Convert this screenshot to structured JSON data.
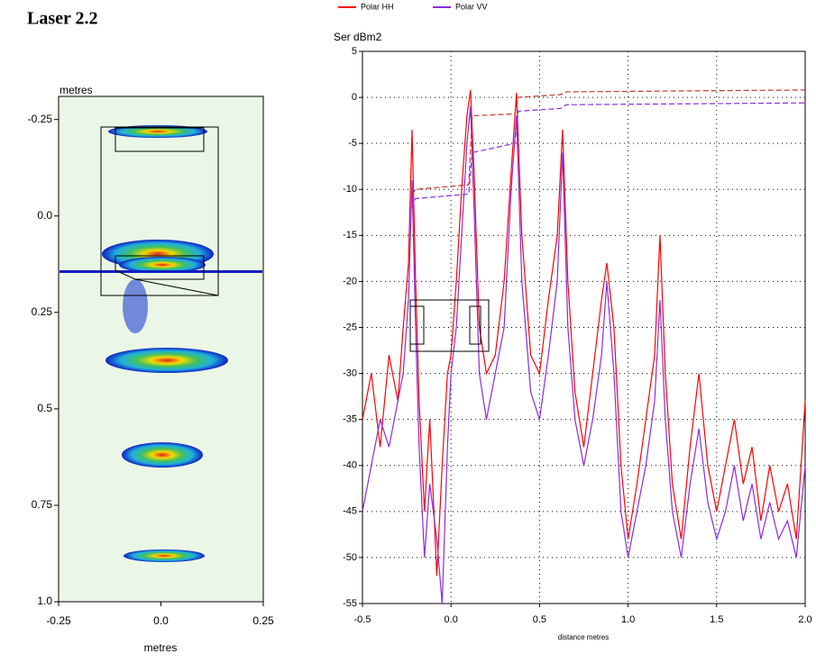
{
  "chart_data": [
    {
      "type": "heatmap",
      "title": "Laser 2.2",
      "ylabel": "metres",
      "xlabel": "metres",
      "xlim": [
        -0.25,
        0.25
      ],
      "xticks": [
        -0.25,
        {
          "value": 0,
          "label": "0.0"
        },
        0.25
      ],
      "ylim": [
        -0.31,
        1.0
      ],
      "yticks": [
        -0.25,
        {
          "value": 0,
          "label": "0.0"
        },
        0.25,
        0.5,
        0.75,
        {
          "value": 1,
          "label": "1.0"
        }
      ],
      "background": "#eaf7e6"
    },
    {
      "type": "line",
      "ylabel": "Ser dBm2",
      "xlabel": "distance metres",
      "xlim": [
        -0.5,
        2.0
      ],
      "xticks": [
        -0.5,
        {
          "value": 0,
          "label": "0.0"
        },
        0.5,
        {
          "value": 1,
          "label": "1.0"
        },
        1.5,
        {
          "value": 2,
          "label": "2.0"
        }
      ],
      "ylim": [
        -55,
        5
      ],
      "yticks": [
        -55,
        -50,
        -45,
        -40,
        -35,
        -30,
        -25,
        -20,
        -15,
        -10,
        -5,
        0,
        5
      ],
      "grid": true,
      "x": [
        -0.5,
        -0.45,
        -0.4,
        -0.35,
        -0.3,
        -0.27,
        -0.24,
        -0.22,
        -0.2,
        -0.18,
        -0.15,
        -0.12,
        -0.08,
        -0.05,
        -0.02,
        0.0,
        0.03,
        0.06,
        0.09,
        0.11,
        0.13,
        0.16,
        0.2,
        0.25,
        0.3,
        0.34,
        0.37,
        0.4,
        0.45,
        0.5,
        0.55,
        0.6,
        0.63,
        0.66,
        0.7,
        0.75,
        0.8,
        0.85,
        0.88,
        0.92,
        0.96,
        1.0,
        1.05,
        1.1,
        1.15,
        1.18,
        1.21,
        1.25,
        1.3,
        1.35,
        1.4,
        1.45,
        1.5,
        1.55,
        1.6,
        1.65,
        1.7,
        1.75,
        1.8,
        1.85,
        1.9,
        1.95,
        2.0
      ],
      "series": [
        {
          "name": "Polar HH",
          "color": "#ff0000",
          "values": [
            -35,
            -30,
            -38,
            -28,
            -33,
            -25,
            -18,
            -3.5,
            -20,
            -33,
            -45,
            -35,
            -52,
            -40,
            -30,
            -28,
            -20,
            -10,
            -2,
            0.8,
            -8,
            -25,
            -30,
            -28,
            -20,
            -8,
            0.5,
            -15,
            -28,
            -30,
            -22,
            -15,
            -3.5,
            -20,
            -32,
            -38,
            -30,
            -22,
            -18,
            -25,
            -40,
            -48,
            -42,
            -35,
            -28,
            -15,
            -30,
            -42,
            -48,
            -38,
            -30,
            -40,
            -45,
            -40,
            -35,
            -42,
            -38,
            -46,
            -40,
            -45,
            -42,
            -48,
            -33
          ]
        },
        {
          "name": "Polar VV",
          "color": "#8a2be2",
          "values": [
            -45,
            -40,
            -35,
            -38,
            -33,
            -30,
            -22,
            -9,
            -25,
            -38,
            -50,
            -42,
            -48,
            -55,
            -38,
            -30,
            -25,
            -15,
            -5,
            -1,
            -12,
            -30,
            -35,
            -30,
            -25,
            -10,
            -2,
            -20,
            -32,
            -35,
            -28,
            -20,
            -6,
            -25,
            -35,
            -40,
            -35,
            -28,
            -20,
            -30,
            -45,
            -50,
            -45,
            -40,
            -33,
            -22,
            -35,
            -45,
            -50,
            -42,
            -36,
            -44,
            -48,
            -45,
            -40,
            -46,
            -42,
            -48,
            -44,
            -48,
            -46,
            -50,
            -40
          ]
        }
      ],
      "cumulative": [
        {
          "color": "#c0392b",
          "x": [
            -0.22,
            -0.2,
            0.1,
            0.12,
            0.36,
            0.38,
            0.62,
            0.65,
            2.0
          ],
          "values": [
            -10.5,
            -10,
            -9.5,
            -2,
            -1.8,
            0,
            0.3,
            0.6,
            0.8
          ]
        },
        {
          "color": "#8a2be2",
          "x": [
            -0.22,
            -0.2,
            0.1,
            0.12,
            0.36,
            0.38,
            0.62,
            0.65,
            2.0
          ],
          "values": [
            -12,
            -11,
            -10.5,
            -6,
            -5,
            -1.5,
            -1.2,
            -0.8,
            -0.6
          ]
        }
      ]
    }
  ]
}
